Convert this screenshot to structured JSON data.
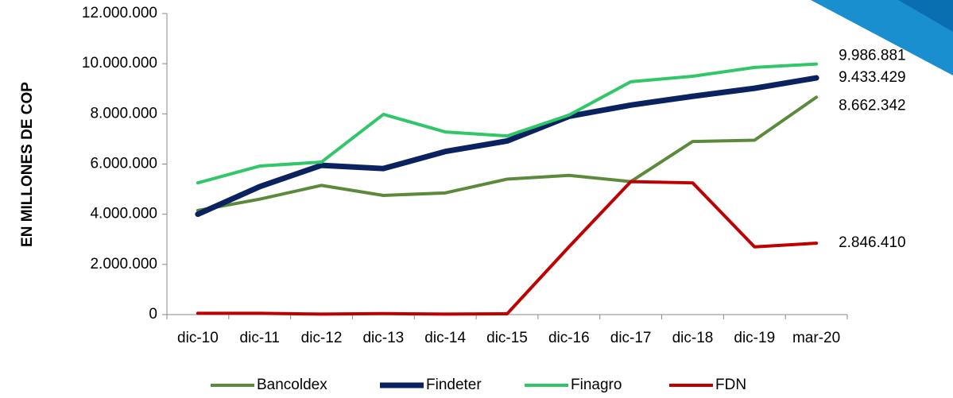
{
  "chart_data": {
    "type": "line",
    "y_axis_label": "EN MILLONES DE COP",
    "categories": [
      "dic-10",
      "dic-11",
      "dic-12",
      "dic-13",
      "dic-14",
      "dic-15",
      "dic-16",
      "dic-17",
      "dic-18",
      "dic-19",
      "mar-20"
    ],
    "ylim": [
      0,
      12000000
    ],
    "yticks": [
      0,
      {
        "value": 2000000,
        "label": "2.000.000"
      },
      {
        "value": 4000000,
        "label": "4.000.000"
      },
      {
        "value": 6000000,
        "label": "6.000.000"
      },
      {
        "value": 8000000,
        "label": "8.000.000"
      },
      {
        "value": 10000000,
        "label": "10.000.000"
      },
      {
        "value": 12000000,
        "label": "12.000.000"
      }
    ],
    "legend": "bottom",
    "series": [
      {
        "name": "Bancoldex",
        "color": "#5b8a3a",
        "width": 4,
        "label_color": "#000000",
        "values": [
          4150000,
          4600000,
          5150000,
          4750000,
          4850000,
          5400000,
          5550000,
          5300000,
          6900000,
          6950000,
          8662342
        ],
        "value_labels": [
          null,
          null,
          null,
          null,
          null,
          null,
          null,
          null,
          null,
          null,
          "8.662.342"
        ]
      },
      {
        "name": "Findeter",
        "color": "#0b2260",
        "width": 7,
        "label_color": "#1f3b8a",
        "values": [
          4000000,
          5100000,
          5950000,
          5820000,
          6500000,
          6920000,
          7900000,
          8350000,
          8700000,
          9020000,
          9433429
        ],
        "value_labels": [
          null,
          null,
          null,
          null,
          null,
          null,
          null,
          null,
          null,
          null,
          "9.433.429"
        ]
      },
      {
        "name": "Finagro",
        "color": "#2fc767",
        "width": 4,
        "label_color": "#000000",
        "values": [
          5250000,
          5920000,
          6080000,
          7980000,
          7280000,
          7120000,
          7950000,
          9280000,
          9500000,
          9850000,
          9986881
        ],
        "value_labels": [
          null,
          null,
          null,
          null,
          null,
          null,
          null,
          null,
          null,
          null,
          "9.986.881"
        ]
      },
      {
        "name": "FDN",
        "color": "#c00000",
        "width": 4,
        "label_color": "#000000",
        "values": [
          50000,
          50000,
          20000,
          40000,
          20000,
          30000,
          2700000,
          5300000,
          5250000,
          2700000,
          2846410
        ],
        "value_labels": [
          null,
          null,
          null,
          null,
          null,
          null,
          null,
          null,
          null,
          null,
          "2.846.410"
        ]
      }
    ]
  }
}
